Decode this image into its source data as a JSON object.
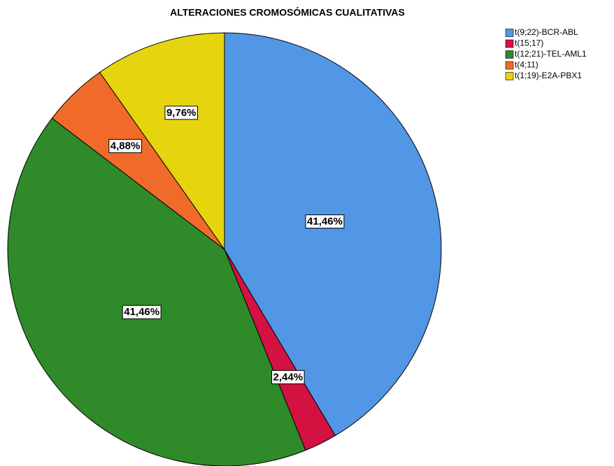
{
  "chart_data": {
    "type": "pie",
    "title": "ALTERACIONES CROMOSÓMICAS CUALITATIVAS",
    "categories": [
      "t(9;22)-BCR-ABL",
      "t(15;17)",
      "t(12;21)-TEL-AML1",
      "t(4;11)",
      "t(1;19)-E2A-PBX1"
    ],
    "values": [
      41.46,
      2.44,
      41.46,
      4.88,
      9.76
    ],
    "value_labels": [
      "41,46%",
      "2,44%",
      "41,46%",
      "4,88%",
      "9,76%"
    ],
    "colors": [
      "#5296e6",
      "#d41241",
      "#2f8a2a",
      "#f06a2a",
      "#e6d40f"
    ],
    "legend": "upper right"
  }
}
